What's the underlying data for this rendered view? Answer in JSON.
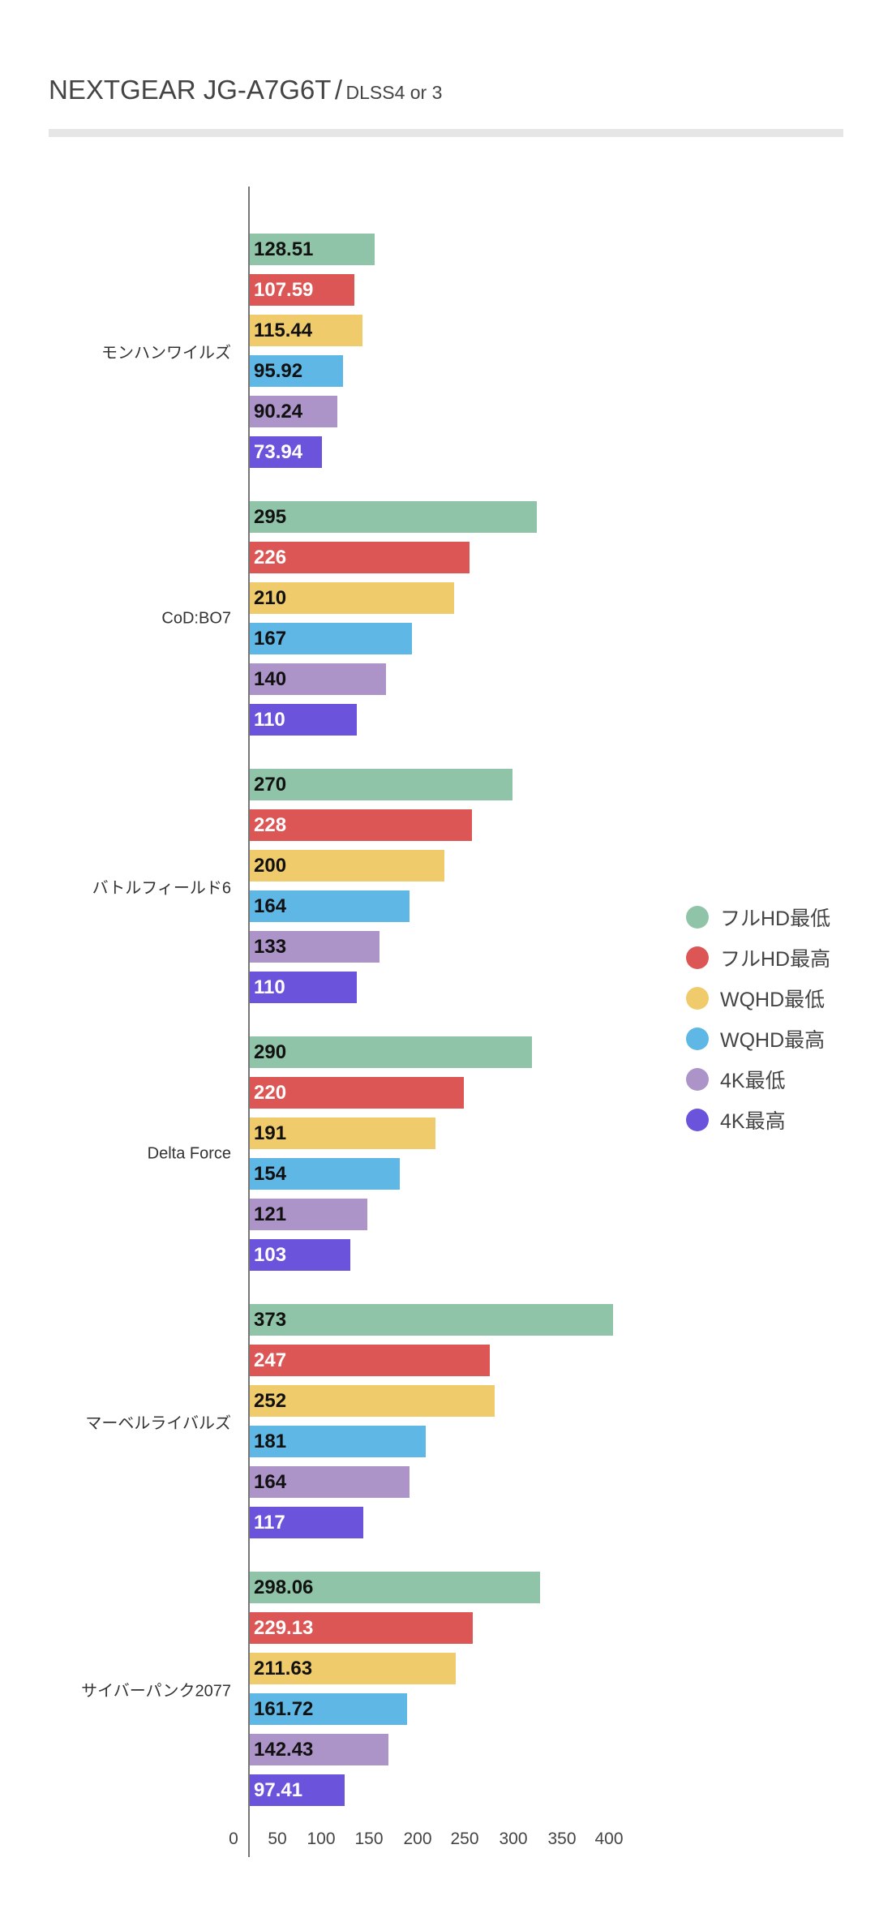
{
  "chart_data": {
    "type": "bar",
    "orientation": "horizontal",
    "title": "NEXTGEAR JG-A7G6T",
    "subtitle": "DLSS4 or 3",
    "title_separator": "/",
    "categories": [
      "モンハンワイルズ",
      "CoD:BO7",
      "バトルフィールド6",
      "Delta Force",
      "マーベルライバルズ",
      "サイバーパンク2077"
    ],
    "series": [
      {
        "name": "フルHD最低",
        "color": "#8fc4a8",
        "label_color": "#111111",
        "values": [
          "128.51",
          "295",
          "270",
          "290",
          "373",
          "298.06"
        ]
      },
      {
        "name": "フルHD最高",
        "color": "#dd5656",
        "label_color": "#ffffff",
        "values": [
          "107.59",
          "226",
          "228",
          "220",
          "247",
          "229.13"
        ]
      },
      {
        "name": "WQHD最低",
        "color": "#f0cb6b",
        "label_color": "#111111",
        "values": [
          "115.44",
          "210",
          "200",
          "191",
          "252",
          "211.63"
        ]
      },
      {
        "name": "WQHD最高",
        "color": "#5fb7e5",
        "label_color": "#111111",
        "values": [
          "95.92",
          "167",
          "164",
          "154",
          "181",
          "161.72"
        ]
      },
      {
        "name": "4K最低",
        "color": "#ad94c8",
        "label_color": "#111111",
        "values": [
          "90.24",
          "140",
          "133",
          "121",
          "164",
          "142.43"
        ]
      },
      {
        "name": "4K最高",
        "color": "#6b54db",
        "label_color": "#ffffff",
        "values": [
          "73.94",
          "110",
          "110",
          "103",
          "117",
          "97.41"
        ]
      }
    ],
    "xticks": [
      "0",
      "50",
      "100",
      "150",
      "200",
      "250",
      "300",
      "350",
      "400"
    ],
    "xlim": [
      0,
      400
    ],
    "legend": "right",
    "grid": false,
    "xlabel": "",
    "ylabel": ""
  }
}
